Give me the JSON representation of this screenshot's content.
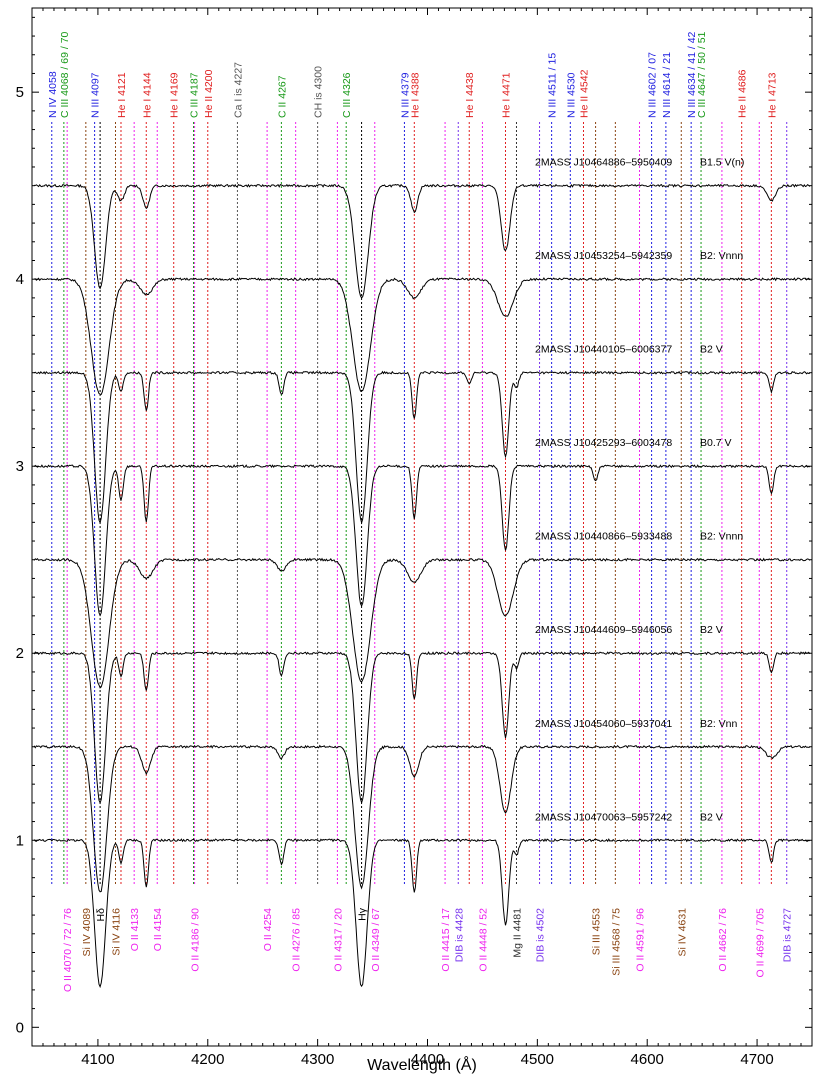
{
  "chart_data": {
    "type": "line",
    "title": "",
    "xlabel": "Wavelength (Å)",
    "ylabel": "",
    "xlim": [
      4040,
      4750
    ],
    "ylim": [
      -0.1,
      5.45
    ],
    "x_ticks": [
      4100,
      4200,
      4300,
      4400,
      4500,
      4600,
      4700
    ],
    "y_ticks": [
      0,
      1,
      2,
      3,
      4,
      5
    ],
    "grid": false,
    "colors": {
      "NIV": "#1f1fe0",
      "NIII": "#1f1fe0",
      "CIII": "#1a9a1a",
      "HeI": "#e02020",
      "HeII": "#e02020",
      "CaI": "#555555",
      "CH": "#555555",
      "CII": "#1a9a1a",
      "OII": "#ee22ee",
      "SiIV": "#8b4513",
      "SiIII": "#8b4513",
      "DIB": "#7733ee",
      "MgII": "#333333",
      "H": "#000000"
    },
    "top_labels": [
      {
        "text": "N IV 4058",
        "x": 4058,
        "color": "#1f1fe0"
      },
      {
        "text": "C III 4068 / 69 / 70",
        "x": 4069,
        "color": "#1a9a1a"
      },
      {
        "text": "N III 4097",
        "x": 4097,
        "color": "#1f1fe0"
      },
      {
        "text": "He I 4121",
        "x": 4121,
        "color": "#e02020"
      },
      {
        "text": "He I 4144",
        "x": 4144,
        "color": "#e02020"
      },
      {
        "text": "He I 4169",
        "x": 4169,
        "color": "#e02020"
      },
      {
        "text": "C III 4187",
        "x": 4187,
        "color": "#1a9a1a"
      },
      {
        "text": "He II 4200",
        "x": 4200,
        "color": "#e02020"
      },
      {
        "text": "Ca I is 4227",
        "x": 4227,
        "color": "#555555"
      },
      {
        "text": "C II 4267",
        "x": 4267,
        "color": "#1a9a1a"
      },
      {
        "text": "CH is 4300",
        "x": 4300,
        "color": "#555555"
      },
      {
        "text": "C III 4326",
        "x": 4326,
        "color": "#1a9a1a"
      },
      {
        "text": "N III 4379",
        "x": 4379,
        "color": "#1f1fe0"
      },
      {
        "text": "He I 4388",
        "x": 4388,
        "color": "#e02020"
      },
      {
        "text": "He I 4438",
        "x": 4438,
        "color": "#e02020"
      },
      {
        "text": "He I 4471",
        "x": 4471,
        "color": "#e02020"
      },
      {
        "text": "N III 4511 / 15",
        "x": 4513,
        "color": "#1f1fe0"
      },
      {
        "text": "N III 4530",
        "x": 4530,
        "color": "#1f1fe0"
      },
      {
        "text": "He II 4542",
        "x": 4542,
        "color": "#e02020"
      },
      {
        "text": "N III 4602 / 07",
        "x": 4604,
        "color": "#1f1fe0"
      },
      {
        "text": "N III 4614 / 21",
        "x": 4617,
        "color": "#1f1fe0"
      },
      {
        "text": "N III 4634 / 41 / 42",
        "x": 4640,
        "color": "#1f1fe0"
      },
      {
        "text": "C III 4647 / 50 / 51",
        "x": 4649,
        "color": "#1a9a1a"
      },
      {
        "text": "He II 4686",
        "x": 4686,
        "color": "#e02020"
      },
      {
        "text": "He I 4713",
        "x": 4713,
        "color": "#e02020"
      }
    ],
    "bottom_labels": [
      {
        "text": "O II 4070 / 72 / 76",
        "x": 4072,
        "color": "#ee22ee"
      },
      {
        "text": "Si IV 4089",
        "x": 4089,
        "color": "#8b4513"
      },
      {
        "text": "Hδ",
        "x": 4102,
        "color": "#000000"
      },
      {
        "text": "Si IV 4116",
        "x": 4116,
        "color": "#8b4513"
      },
      {
        "text": "O II 4133",
        "x": 4133,
        "color": "#ee22ee"
      },
      {
        "text": "O II 4154",
        "x": 4154,
        "color": "#ee22ee"
      },
      {
        "text": "O II 4186 / 90",
        "x": 4188,
        "color": "#ee22ee"
      },
      {
        "text": "O II 4254",
        "x": 4254,
        "color": "#ee22ee"
      },
      {
        "text": "O II 4276 / 85",
        "x": 4280,
        "color": "#ee22ee"
      },
      {
        "text": "O II 4317 / 20",
        "x": 4318,
        "color": "#ee22ee"
      },
      {
        "text": "Hγ",
        "x": 4340,
        "color": "#000000"
      },
      {
        "text": "O II 4349 / 67",
        "x": 4352,
        "color": "#ee22ee"
      },
      {
        "text": "O II 4415 / 17",
        "x": 4416,
        "color": "#ee22ee"
      },
      {
        "text": "DIB is 4428",
        "x": 4428,
        "color": "#7733ee"
      },
      {
        "text": "O II 4448 / 52",
        "x": 4450,
        "color": "#ee22ee"
      },
      {
        "text": "Mg II 4481",
        "x": 4481,
        "color": "#333333"
      },
      {
        "text": "DIB is 4502",
        "x": 4502,
        "color": "#7733ee"
      },
      {
        "text": "Si III 4553",
        "x": 4553,
        "color": "#8b4513"
      },
      {
        "text": "Si III 4568 / 75",
        "x": 4571,
        "color": "#8b4513"
      },
      {
        "text": "O II 4591 / 96",
        "x": 4593,
        "color": "#ee22ee"
      },
      {
        "text": "Si IV 4631",
        "x": 4631,
        "color": "#8b4513"
      },
      {
        "text": "O II 4662 / 76",
        "x": 4668,
        "color": "#ee22ee"
      },
      {
        "text": "O II 4699 / 705",
        "x": 4702,
        "color": "#ee22ee"
      },
      {
        "text": "DIB is 4727",
        "x": 4727,
        "color": "#7733ee"
      }
    ],
    "series": [
      {
        "name": "2MASS J10464886–5950409",
        "sptype": "B1.5 V(n)",
        "offset": 4.5,
        "lines": [
          {
            "x": 4102,
            "d": 0.55,
            "w": 5
          },
          {
            "x": 4121,
            "d": 0.08,
            "w": 3
          },
          {
            "x": 4144,
            "d": 0.12,
            "w": 3
          },
          {
            "x": 4340,
            "d": 0.6,
            "w": 6
          },
          {
            "x": 4388,
            "d": 0.14,
            "w": 3
          },
          {
            "x": 4471,
            "d": 0.35,
            "w": 4
          },
          {
            "x": 4713,
            "d": 0.08,
            "w": 4
          }
        ]
      },
      {
        "name": "2MASS J10453254–5942359",
        "sptype": "B2: Vnnn",
        "offset": 4.0,
        "lines": [
          {
            "x": 4102,
            "d": 0.62,
            "w": 8
          },
          {
            "x": 4144,
            "d": 0.08,
            "w": 6
          },
          {
            "x": 4340,
            "d": 0.6,
            "w": 8
          },
          {
            "x": 4388,
            "d": 0.1,
            "w": 6
          },
          {
            "x": 4471,
            "d": 0.2,
            "w": 7
          }
        ]
      },
      {
        "name": "2MASS J10440105–6006377",
        "sptype": "B2 V",
        "offset": 3.5,
        "lines": [
          {
            "x": 4102,
            "d": 0.8,
            "w": 5
          },
          {
            "x": 4121,
            "d": 0.1,
            "w": 2
          },
          {
            "x": 4144,
            "d": 0.2,
            "w": 2
          },
          {
            "x": 4267,
            "d": 0.12,
            "w": 2
          },
          {
            "x": 4340,
            "d": 0.8,
            "w": 5
          },
          {
            "x": 4388,
            "d": 0.25,
            "w": 2
          },
          {
            "x": 4438,
            "d": 0.06,
            "w": 2
          },
          {
            "x": 4471,
            "d": 0.45,
            "w": 3
          },
          {
            "x": 4481,
            "d": 0.08,
            "w": 2
          },
          {
            "x": 4713,
            "d": 0.1,
            "w": 2
          }
        ]
      },
      {
        "name": "2MASS J10425293–6003478",
        "sptype": "B0.7 V",
        "offset": 3.0,
        "lines": [
          {
            "x": 4102,
            "d": 0.8,
            "w": 5
          },
          {
            "x": 4121,
            "d": 0.18,
            "w": 2
          },
          {
            "x": 4144,
            "d": 0.3,
            "w": 2
          },
          {
            "x": 4340,
            "d": 0.75,
            "w": 5
          },
          {
            "x": 4388,
            "d": 0.28,
            "w": 2
          },
          {
            "x": 4471,
            "d": 0.45,
            "w": 3
          },
          {
            "x": 4553,
            "d": 0.08,
            "w": 2
          },
          {
            "x": 4713,
            "d": 0.15,
            "w": 2
          }
        ]
      },
      {
        "name": "2MASS J10440866–5933488",
        "sptype": "B2: Vnnn",
        "offset": 2.5,
        "lines": [
          {
            "x": 4102,
            "d": 0.68,
            "w": 8
          },
          {
            "x": 4144,
            "d": 0.1,
            "w": 6
          },
          {
            "x": 4267,
            "d": 0.06,
            "w": 4
          },
          {
            "x": 4340,
            "d": 0.65,
            "w": 8
          },
          {
            "x": 4388,
            "d": 0.12,
            "w": 6
          },
          {
            "x": 4471,
            "d": 0.3,
            "w": 7
          }
        ]
      },
      {
        "name": "2MASS J10444609–5946056",
        "sptype": "B2 V",
        "offset": 2.0,
        "lines": [
          {
            "x": 4102,
            "d": 0.8,
            "w": 5
          },
          {
            "x": 4121,
            "d": 0.12,
            "w": 2
          },
          {
            "x": 4144,
            "d": 0.2,
            "w": 2
          },
          {
            "x": 4267,
            "d": 0.12,
            "w": 2
          },
          {
            "x": 4340,
            "d": 0.8,
            "w": 5
          },
          {
            "x": 4388,
            "d": 0.25,
            "w": 2
          },
          {
            "x": 4471,
            "d": 0.45,
            "w": 3
          },
          {
            "x": 4481,
            "d": 0.08,
            "w": 2
          },
          {
            "x": 4713,
            "d": 0.1,
            "w": 2
          }
        ]
      },
      {
        "name": "2MASS J10454060–5937041",
        "sptype": "B2: Vnn",
        "offset": 1.5,
        "lines": [
          {
            "x": 4102,
            "d": 0.78,
            "w": 6
          },
          {
            "x": 4144,
            "d": 0.14,
            "w": 4
          },
          {
            "x": 4267,
            "d": 0.06,
            "w": 3
          },
          {
            "x": 4340,
            "d": 0.75,
            "w": 6
          },
          {
            "x": 4388,
            "d": 0.16,
            "w": 4
          },
          {
            "x": 4471,
            "d": 0.35,
            "w": 5
          },
          {
            "x": 4713,
            "d": 0.06,
            "w": 5
          }
        ]
      },
      {
        "name": "2MASS J10470063–5957242",
        "sptype": "B2 V",
        "offset": 1.0,
        "lines": [
          {
            "x": 4102,
            "d": 0.78,
            "w": 5
          },
          {
            "x": 4121,
            "d": 0.12,
            "w": 2
          },
          {
            "x": 4144,
            "d": 0.25,
            "w": 2
          },
          {
            "x": 4267,
            "d": 0.13,
            "w": 2
          },
          {
            "x": 4340,
            "d": 0.78,
            "w": 5
          },
          {
            "x": 4388,
            "d": 0.28,
            "w": 2
          },
          {
            "x": 4471,
            "d": 0.45,
            "w": 3
          },
          {
            "x": 4481,
            "d": 0.08,
            "w": 2
          },
          {
            "x": 4713,
            "d": 0.12,
            "w": 2
          }
        ]
      }
    ]
  }
}
